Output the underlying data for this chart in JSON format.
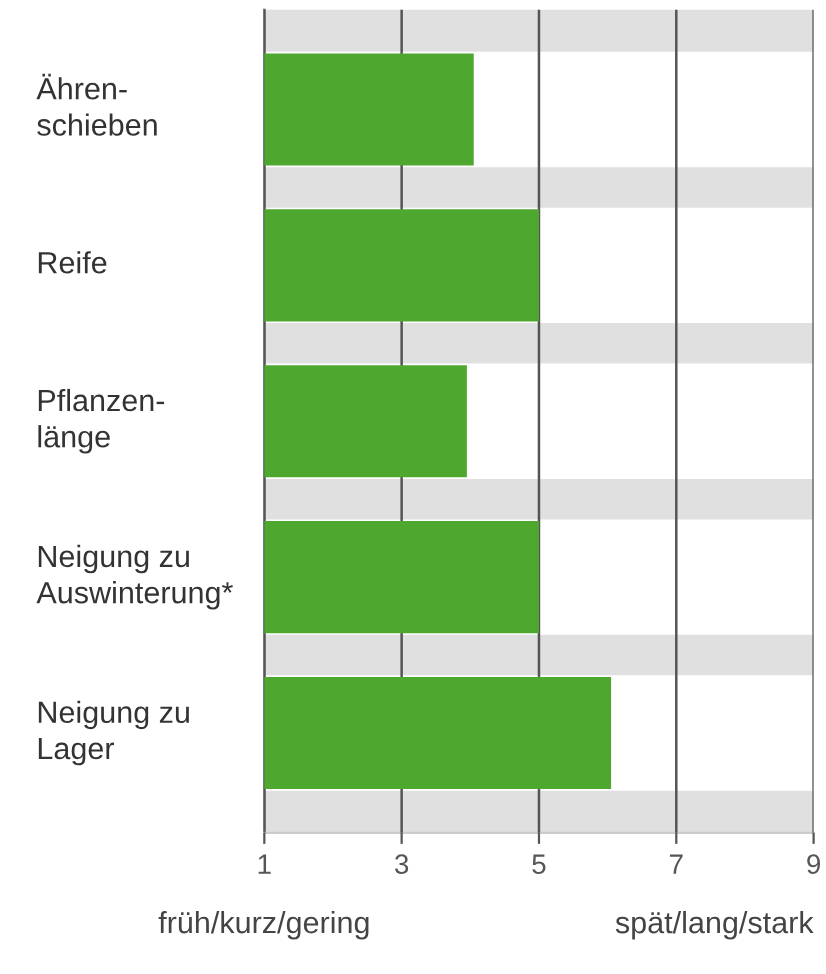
{
  "chart_data": {
    "type": "bar",
    "orientation": "horizontal",
    "categories": [
      "Ähren-\nschieben",
      "Reife",
      "Pflanzen-\nlänge",
      "Neigung zu\nAuswinterung*",
      "Neigung zu\nLager"
    ],
    "values": [
      4.05,
      5.0,
      3.95,
      5.0,
      6.05
    ],
    "color": "#4ea72e",
    "xlim": [
      1,
      9
    ],
    "xticks": [
      1,
      3,
      5,
      7,
      9
    ],
    "grid": "x",
    "annotations": [
      "früh/kurz/gering",
      "spät/lang/stark"
    ]
  }
}
